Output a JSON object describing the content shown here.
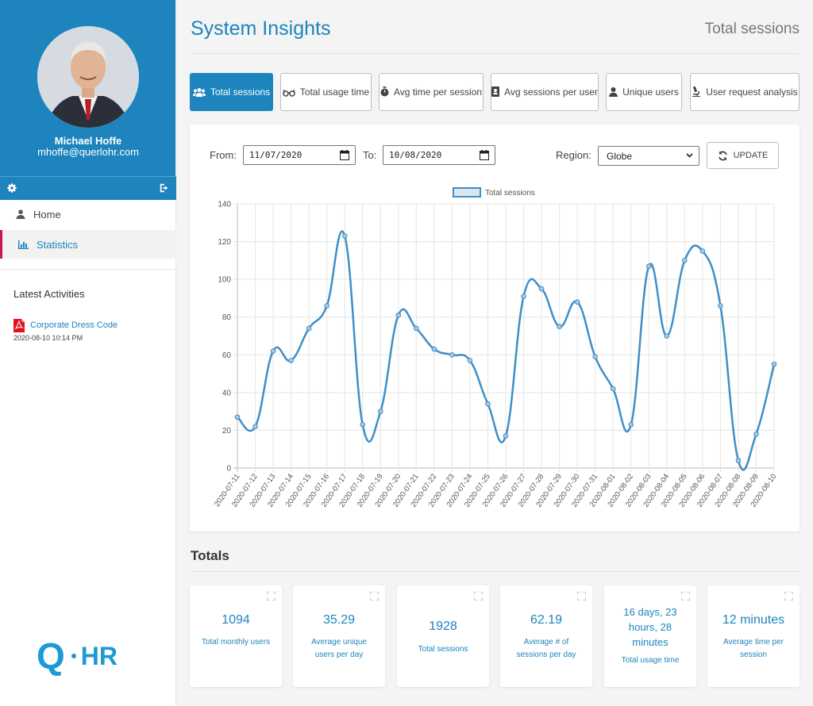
{
  "user": {
    "name": "Michael Hoffe",
    "email": "mhoffe@querlohr.com"
  },
  "nav": {
    "home": "Home",
    "statistics": "Statistics"
  },
  "activities": {
    "title": "Latest Activities",
    "items": [
      {
        "label": "Corporate Dress Code",
        "date": "2020-08-10 10:14 PM"
      }
    ]
  },
  "logo": {
    "q": "Q",
    "hr": "HR"
  },
  "page": {
    "title": "System Insights",
    "subtitle": "Total sessions"
  },
  "tabs": [
    {
      "label": "Total sessions",
      "icon": "users-icon"
    },
    {
      "label": "Total usage time",
      "icon": "glasses-icon"
    },
    {
      "label": "Avg time per session",
      "icon": "stopwatch-icon"
    },
    {
      "label": "Avg sessions per user",
      "icon": "id-badge-icon"
    },
    {
      "label": "Unique users",
      "icon": "user-icon"
    },
    {
      "label": "User request analysis",
      "icon": "microscope-icon"
    }
  ],
  "filters": {
    "from_label": "From:",
    "from_value": "11/07/2020",
    "to_label": "To:",
    "to_value": "10/08/2020",
    "region_label": "Region:",
    "region_value": "Globe",
    "update_label": "UPDATE"
  },
  "chart_data": {
    "type": "line",
    "legend": "Total sessions",
    "ylim": [
      0,
      140
    ],
    "yticks": [
      0,
      20,
      40,
      60,
      80,
      100,
      120,
      140
    ],
    "x": [
      "2020-07-11",
      "2020-07-12",
      "2020-07-13",
      "2020-07-14",
      "2020-07-15",
      "2020-07-16",
      "2020-07-17",
      "2020-07-18",
      "2020-07-19",
      "2020-07-20",
      "2020-07-21",
      "2020-07-22",
      "2020-07-23",
      "2020-07-24",
      "2020-07-25",
      "2020-07-26",
      "2020-07-27",
      "2020-07-28",
      "2020-07-29",
      "2020-07-30",
      "2020-07-31",
      "2020-08-01",
      "2020-08-02",
      "2020-08-03",
      "2020-08-04",
      "2020-08-05",
      "2020-08-06",
      "2020-08-07",
      "2020-08-08",
      "2020-08-09",
      "2020-08-10"
    ],
    "series": [
      {
        "name": "Total sessions",
        "values": [
          27,
          22,
          62,
          57,
          74,
          86,
          123,
          23,
          30,
          81,
          74,
          63,
          60,
          57,
          34,
          17,
          91,
          95,
          75,
          88,
          59,
          42,
          23,
          107,
          70,
          110,
          115,
          86,
          4,
          18,
          55
        ]
      }
    ],
    "line_color": "#3e8fc7",
    "grid": true
  },
  "totals": {
    "title": "Totals",
    "tiles": [
      {
        "value": "1094",
        "label": "Total monthly users"
      },
      {
        "value": "35.29",
        "label": "Average unique users per day"
      },
      {
        "value": "1928",
        "label": "Total sessions"
      },
      {
        "value": "62.19",
        "label": "Average # of sessions per day"
      },
      {
        "value": "16 days, 23 hours, 28 minutes",
        "label": "Total usage time"
      },
      {
        "value": "12 minutes",
        "label": "Average time per session"
      }
    ]
  }
}
